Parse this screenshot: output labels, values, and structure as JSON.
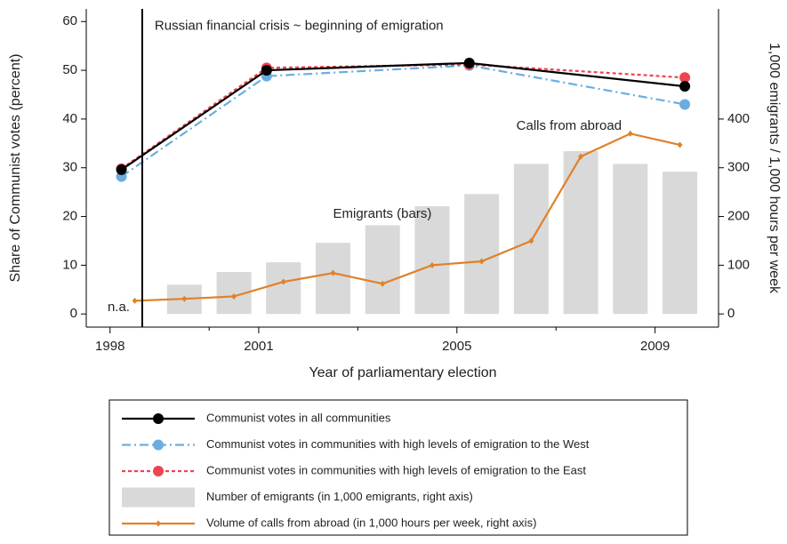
{
  "chart_data": {
    "type": "combo",
    "x_label": "Year of parliamentary election",
    "y_label": "Share of Communist votes (percent)",
    "y2_label": "1,000 emigrants / 1,000 hours per week",
    "xlim": [
      1997.52,
      2010.28
    ],
    "xticks": [
      1998,
      2001,
      2005,
      2009
    ],
    "xminor_ticks": [
      2000,
      2003,
      2007
    ],
    "ylim": [
      -2.7,
      62.6
    ],
    "yticks": [
      0,
      10,
      20,
      30,
      40,
      50,
      60
    ],
    "y2lim": [
      -27,
      626
    ],
    "y2ticks": [
      0,
      100,
      200,
      300,
      400
    ],
    "vline": 1998.65,
    "annotations": [
      {
        "text": "Russian financial crisis ~ beginning of emigration",
        "x": 1998.9,
        "y": 59
      },
      {
        "text": "Emigrants (bars)",
        "x": 2002.5,
        "y": 20.5
      },
      {
        "text": "Calls from abroad",
        "x": 2006.2,
        "y": 38.5
      },
      {
        "text": "n.a.",
        "x": 1997.95,
        "y": 1.3
      }
    ],
    "series": [
      {
        "name": "Number of emigrants (in 1,000 emigrants, right axis)",
        "type": "bar",
        "axis": "y2",
        "color": "#d9d9d9",
        "x": [
          1999.5,
          2000.5,
          2001.5,
          2002.5,
          2003.5,
          2004.5,
          2005.5,
          2006.5,
          2007.5,
          2008.5,
          2009.5
        ],
        "values": [
          60,
          86,
          106,
          146,
          182,
          221,
          246,
          308,
          334,
          308,
          292
        ]
      },
      {
        "name": "Volume of calls from abroad (in 1,000 hours per week, right axis)",
        "type": "line",
        "axis": "y2",
        "color": "#e0812a",
        "dash": "solid",
        "marker": "diamond",
        "x": [
          1998.5,
          1999.5,
          2000.5,
          2001.5,
          2002.5,
          2003.5,
          2004.5,
          2005.5,
          2006.5,
          2007.5,
          2008.5,
          2009.5
        ],
        "values": [
          27,
          31,
          36,
          66,
          84,
          62,
          100,
          108,
          150,
          323,
          370,
          347
        ]
      },
      {
        "name": "Communist votes in communities with high levels of emigration to the West",
        "type": "line",
        "color": "#6aaee0",
        "dash": "dashdot",
        "marker": "circle",
        "x": [
          1998.23,
          2001.16,
          2005.25,
          2009.6
        ],
        "values": [
          28.2,
          48.8,
          51,
          43
        ]
      },
      {
        "name": "Communist votes in communities with high levels of emigration to the East",
        "type": "line",
        "color": "#ee4450",
        "dash": "dotted",
        "marker": "circle",
        "x": [
          1998.23,
          2001.16,
          2005.25,
          2009.6
        ],
        "values": [
          29.8,
          50.5,
          51.2,
          48.5
        ]
      },
      {
        "name": "Communist votes in all communities",
        "type": "line",
        "color": "#000000",
        "dash": "solid",
        "marker": "circle",
        "x": [
          1998.23,
          2001.16,
          2005.25,
          2009.6
        ],
        "values": [
          29.6,
          50,
          51.5,
          46.7
        ]
      }
    ],
    "legend_order": [
      4,
      2,
      3,
      0,
      1
    ]
  }
}
